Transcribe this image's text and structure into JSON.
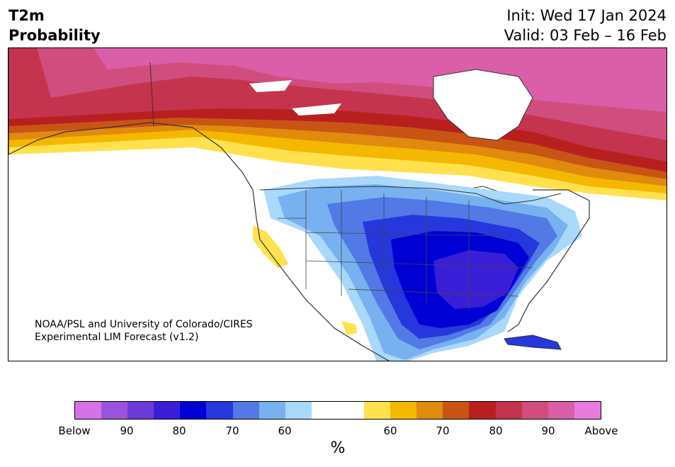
{
  "title": {
    "line1": "T2m",
    "line2": "Probability",
    "init": "Init: Wed 17 Jan 2024",
    "valid": "Valid: 03 Feb – 16 Feb"
  },
  "credit": {
    "line1": "NOAA/PSL and University of Colorado/CIRES",
    "line2": "Experimental LIM Forecast (v1.2)"
  },
  "colorbar": {
    "unit": "%",
    "colors": [
      "#d671e8",
      "#9b52de",
      "#6c3ad8",
      "#3a1ed6",
      "#0000d4",
      "#2638db",
      "#5279e6",
      "#77b1f0",
      "#aad8fa",
      "#ffffff",
      "#ffffff",
      "#ffe14d",
      "#f5b800",
      "#e08a0e",
      "#c85514",
      "#b82020",
      "#c4344e",
      "#d04d7e",
      "#db5ea8",
      "#e87ade"
    ],
    "tick_labels": [
      "Below",
      "90",
      "80",
      "70",
      "60",
      "60",
      "70",
      "80",
      "90",
      "Above"
    ]
  },
  "map_colors": {
    "land": "#ffffff",
    "water": "#ffffff",
    "coast": "#333333",
    "below_strong": "#0000d4",
    "below_core": "#3a1ed6",
    "below_mid": "#2638db",
    "below_light": "#5279e6",
    "below_pale": "#77b1f0",
    "below_faint": "#aad8fa",
    "above_faint": "#ffe14d",
    "above_light": "#f5b800",
    "above_mid": "#e08a0e",
    "above_orange": "#c85514",
    "above_red": "#b82020",
    "above_rose": "#c4344e",
    "above_pink": "#d04d7e",
    "above_magenta": "#db5ea8"
  }
}
